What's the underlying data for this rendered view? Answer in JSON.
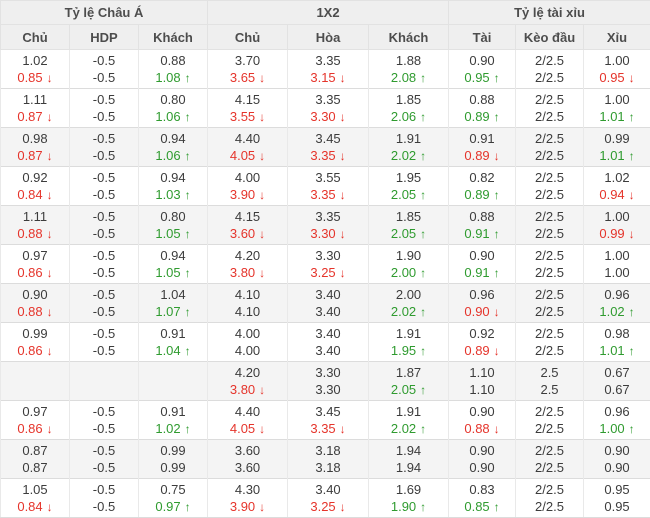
{
  "table": {
    "groups": [
      {
        "label": "Tỷ lệ Châu Á",
        "columns": [
          "Chủ",
          "HDP",
          "Khách"
        ]
      },
      {
        "label": "1X2",
        "columns": [
          "Chủ",
          "Hòa",
          "Khách"
        ]
      },
      {
        "label": "Tỷ lệ tài xỉu",
        "columns": [
          "Tài",
          "Kèo đầu",
          "Xỉu"
        ]
      }
    ],
    "rows": [
      {
        "shaded": false,
        "lines": [
          [
            [
              "1.02",
              "n"
            ],
            [
              "-0.5",
              "n"
            ],
            [
              "0.88",
              "n"
            ],
            [
              "3.70",
              "n"
            ],
            [
              "3.35",
              "n"
            ],
            [
              "1.88",
              "n"
            ],
            [
              "0.90",
              "n"
            ],
            [
              "2/2.5",
              "n"
            ],
            [
              "1.00",
              "n"
            ]
          ],
          [
            [
              "0.85",
              "d"
            ],
            [
              "-0.5",
              "n"
            ],
            [
              "1.08",
              "u"
            ],
            [
              "3.65",
              "d"
            ],
            [
              "3.15",
              "d"
            ],
            [
              "2.08",
              "u"
            ],
            [
              "0.95",
              "u"
            ],
            [
              "2/2.5",
              "n"
            ],
            [
              "0.95",
              "d"
            ]
          ]
        ]
      },
      {
        "shaded": false,
        "lines": [
          [
            [
              "1.11",
              "n"
            ],
            [
              "-0.5",
              "n"
            ],
            [
              "0.80",
              "n"
            ],
            [
              "4.15",
              "n"
            ],
            [
              "3.35",
              "n"
            ],
            [
              "1.85",
              "n"
            ],
            [
              "0.88",
              "n"
            ],
            [
              "2/2.5",
              "n"
            ],
            [
              "1.00",
              "n"
            ]
          ],
          [
            [
              "0.87",
              "d"
            ],
            [
              "-0.5",
              "n"
            ],
            [
              "1.06",
              "u"
            ],
            [
              "3.55",
              "d"
            ],
            [
              "3.30",
              "d"
            ],
            [
              "2.06",
              "u"
            ],
            [
              "0.89",
              "u"
            ],
            [
              "2/2.5",
              "n"
            ],
            [
              "1.01",
              "u"
            ]
          ]
        ]
      },
      {
        "shaded": true,
        "lines": [
          [
            [
              "0.98",
              "n"
            ],
            [
              "-0.5",
              "n"
            ],
            [
              "0.94",
              "n"
            ],
            [
              "4.40",
              "n"
            ],
            [
              "3.45",
              "n"
            ],
            [
              "1.91",
              "n"
            ],
            [
              "0.91",
              "n"
            ],
            [
              "2/2.5",
              "n"
            ],
            [
              "0.99",
              "n"
            ]
          ],
          [
            [
              "0.87",
              "d"
            ],
            [
              "-0.5",
              "n"
            ],
            [
              "1.06",
              "u"
            ],
            [
              "4.05",
              "d"
            ],
            [
              "3.35",
              "d"
            ],
            [
              "2.02",
              "u"
            ],
            [
              "0.89",
              "d"
            ],
            [
              "2/2.5",
              "n"
            ],
            [
              "1.01",
              "u"
            ]
          ]
        ]
      },
      {
        "shaded": false,
        "lines": [
          [
            [
              "0.92",
              "n"
            ],
            [
              "-0.5",
              "n"
            ],
            [
              "0.94",
              "n"
            ],
            [
              "4.00",
              "n"
            ],
            [
              "3.55",
              "n"
            ],
            [
              "1.95",
              "n"
            ],
            [
              "0.82",
              "n"
            ],
            [
              "2/2.5",
              "n"
            ],
            [
              "1.02",
              "n"
            ]
          ],
          [
            [
              "0.84",
              "d"
            ],
            [
              "-0.5",
              "n"
            ],
            [
              "1.03",
              "u"
            ],
            [
              "3.90",
              "d"
            ],
            [
              "3.35",
              "d"
            ],
            [
              "2.05",
              "u"
            ],
            [
              "0.89",
              "u"
            ],
            [
              "2/2.5",
              "n"
            ],
            [
              "0.94",
              "d"
            ]
          ]
        ]
      },
      {
        "shaded": true,
        "lines": [
          [
            [
              "1.11",
              "n"
            ],
            [
              "-0.5",
              "n"
            ],
            [
              "0.80",
              "n"
            ],
            [
              "4.15",
              "n"
            ],
            [
              "3.35",
              "n"
            ],
            [
              "1.85",
              "n"
            ],
            [
              "0.88",
              "n"
            ],
            [
              "2/2.5",
              "n"
            ],
            [
              "1.00",
              "n"
            ]
          ],
          [
            [
              "0.88",
              "d"
            ],
            [
              "-0.5",
              "n"
            ],
            [
              "1.05",
              "u"
            ],
            [
              "3.60",
              "d"
            ],
            [
              "3.30",
              "d"
            ],
            [
              "2.05",
              "u"
            ],
            [
              "0.91",
              "u"
            ],
            [
              "2/2.5",
              "n"
            ],
            [
              "0.99",
              "d"
            ]
          ]
        ]
      },
      {
        "shaded": false,
        "lines": [
          [
            [
              "0.97",
              "n"
            ],
            [
              "-0.5",
              "n"
            ],
            [
              "0.94",
              "n"
            ],
            [
              "4.20",
              "n"
            ],
            [
              "3.30",
              "n"
            ],
            [
              "1.90",
              "n"
            ],
            [
              "0.90",
              "n"
            ],
            [
              "2/2.5",
              "n"
            ],
            [
              "1.00",
              "n"
            ]
          ],
          [
            [
              "0.86",
              "d"
            ],
            [
              "-0.5",
              "n"
            ],
            [
              "1.05",
              "u"
            ],
            [
              "3.80",
              "d"
            ],
            [
              "3.25",
              "d"
            ],
            [
              "2.00",
              "u"
            ],
            [
              "0.91",
              "u"
            ],
            [
              "2/2.5",
              "n"
            ],
            [
              "1.00",
              "n"
            ]
          ]
        ]
      },
      {
        "shaded": true,
        "lines": [
          [
            [
              "0.90",
              "n"
            ],
            [
              "-0.5",
              "n"
            ],
            [
              "1.04",
              "n"
            ],
            [
              "4.10",
              "n"
            ],
            [
              "3.40",
              "n"
            ],
            [
              "2.00",
              "n"
            ],
            [
              "0.96",
              "n"
            ],
            [
              "2/2.5",
              "n"
            ],
            [
              "0.96",
              "n"
            ]
          ],
          [
            [
              "0.88",
              "d"
            ],
            [
              "-0.5",
              "n"
            ],
            [
              "1.07",
              "u"
            ],
            [
              "4.10",
              "n"
            ],
            [
              "3.40",
              "n"
            ],
            [
              "2.02",
              "u"
            ],
            [
              "0.90",
              "d"
            ],
            [
              "2/2.5",
              "n"
            ],
            [
              "1.02",
              "u"
            ]
          ]
        ]
      },
      {
        "shaded": false,
        "lines": [
          [
            [
              "0.99",
              "n"
            ],
            [
              "-0.5",
              "n"
            ],
            [
              "0.91",
              "n"
            ],
            [
              "4.00",
              "n"
            ],
            [
              "3.40",
              "n"
            ],
            [
              "1.91",
              "n"
            ],
            [
              "0.92",
              "n"
            ],
            [
              "2/2.5",
              "n"
            ],
            [
              "0.98",
              "n"
            ]
          ],
          [
            [
              "0.86",
              "d"
            ],
            [
              "-0.5",
              "n"
            ],
            [
              "1.04",
              "u"
            ],
            [
              "4.00",
              "n"
            ],
            [
              "3.40",
              "n"
            ],
            [
              "1.95",
              "u"
            ],
            [
              "0.89",
              "d"
            ],
            [
              "2/2.5",
              "n"
            ],
            [
              "1.01",
              "u"
            ]
          ]
        ]
      },
      {
        "shaded": true,
        "lines": [
          [
            [
              "",
              "n"
            ],
            [
              "",
              "n"
            ],
            [
              "",
              "n"
            ],
            [
              "4.20",
              "n"
            ],
            [
              "3.30",
              "n"
            ],
            [
              "1.87",
              "n"
            ],
            [
              "1.10",
              "n"
            ],
            [
              "2.5",
              "n"
            ],
            [
              "0.67",
              "n"
            ]
          ],
          [
            [
              "",
              "n"
            ],
            [
              "",
              "n"
            ],
            [
              "",
              "n"
            ],
            [
              "3.80",
              "d"
            ],
            [
              "3.30",
              "n"
            ],
            [
              "2.05",
              "u"
            ],
            [
              "1.10",
              "n"
            ],
            [
              "2.5",
              "n"
            ],
            [
              "0.67",
              "n"
            ]
          ]
        ]
      },
      {
        "shaded": false,
        "lines": [
          [
            [
              "0.97",
              "n"
            ],
            [
              "-0.5",
              "n"
            ],
            [
              "0.91",
              "n"
            ],
            [
              "4.40",
              "n"
            ],
            [
              "3.45",
              "n"
            ],
            [
              "1.91",
              "n"
            ],
            [
              "0.90",
              "n"
            ],
            [
              "2/2.5",
              "n"
            ],
            [
              "0.96",
              "n"
            ]
          ],
          [
            [
              "0.86",
              "d"
            ],
            [
              "-0.5",
              "n"
            ],
            [
              "1.02",
              "u"
            ],
            [
              "4.05",
              "d"
            ],
            [
              "3.35",
              "d"
            ],
            [
              "2.02",
              "u"
            ],
            [
              "0.88",
              "d"
            ],
            [
              "2/2.5",
              "n"
            ],
            [
              "1.00",
              "u"
            ]
          ]
        ]
      },
      {
        "shaded": true,
        "lines": [
          [
            [
              "0.87",
              "n"
            ],
            [
              "-0.5",
              "n"
            ],
            [
              "0.99",
              "n"
            ],
            [
              "3.60",
              "n"
            ],
            [
              "3.18",
              "n"
            ],
            [
              "1.94",
              "n"
            ],
            [
              "0.90",
              "n"
            ],
            [
              "2/2.5",
              "n"
            ],
            [
              "0.90",
              "n"
            ]
          ],
          [
            [
              "0.87",
              "n"
            ],
            [
              "-0.5",
              "n"
            ],
            [
              "0.99",
              "n"
            ],
            [
              "3.60",
              "n"
            ],
            [
              "3.18",
              "n"
            ],
            [
              "1.94",
              "n"
            ],
            [
              "0.90",
              "n"
            ],
            [
              "2/2.5",
              "n"
            ],
            [
              "0.90",
              "n"
            ]
          ]
        ]
      },
      {
        "shaded": false,
        "lines": [
          [
            [
              "1.05",
              "n"
            ],
            [
              "-0.5",
              "n"
            ],
            [
              "0.75",
              "n"
            ],
            [
              "4.30",
              "n"
            ],
            [
              "3.40",
              "n"
            ],
            [
              "1.69",
              "n"
            ],
            [
              "0.83",
              "n"
            ],
            [
              "2/2.5",
              "n"
            ],
            [
              "0.95",
              "n"
            ]
          ],
          [
            [
              "0.84",
              "d"
            ],
            [
              "-0.5",
              "n"
            ],
            [
              "0.97",
              "u"
            ],
            [
              "3.90",
              "d"
            ],
            [
              "3.25",
              "d"
            ],
            [
              "1.90",
              "u"
            ],
            [
              "0.85",
              "u"
            ],
            [
              "2/2.5",
              "n"
            ],
            [
              "0.95",
              "n"
            ]
          ]
        ]
      }
    ]
  },
  "icons": {
    "up": "↑",
    "down": "↓"
  },
  "colors": {
    "up_green": "#2f9b2f",
    "down_red": "#e5342b",
    "header_bg": "#efefef",
    "stripe": "#f4f4f4"
  }
}
